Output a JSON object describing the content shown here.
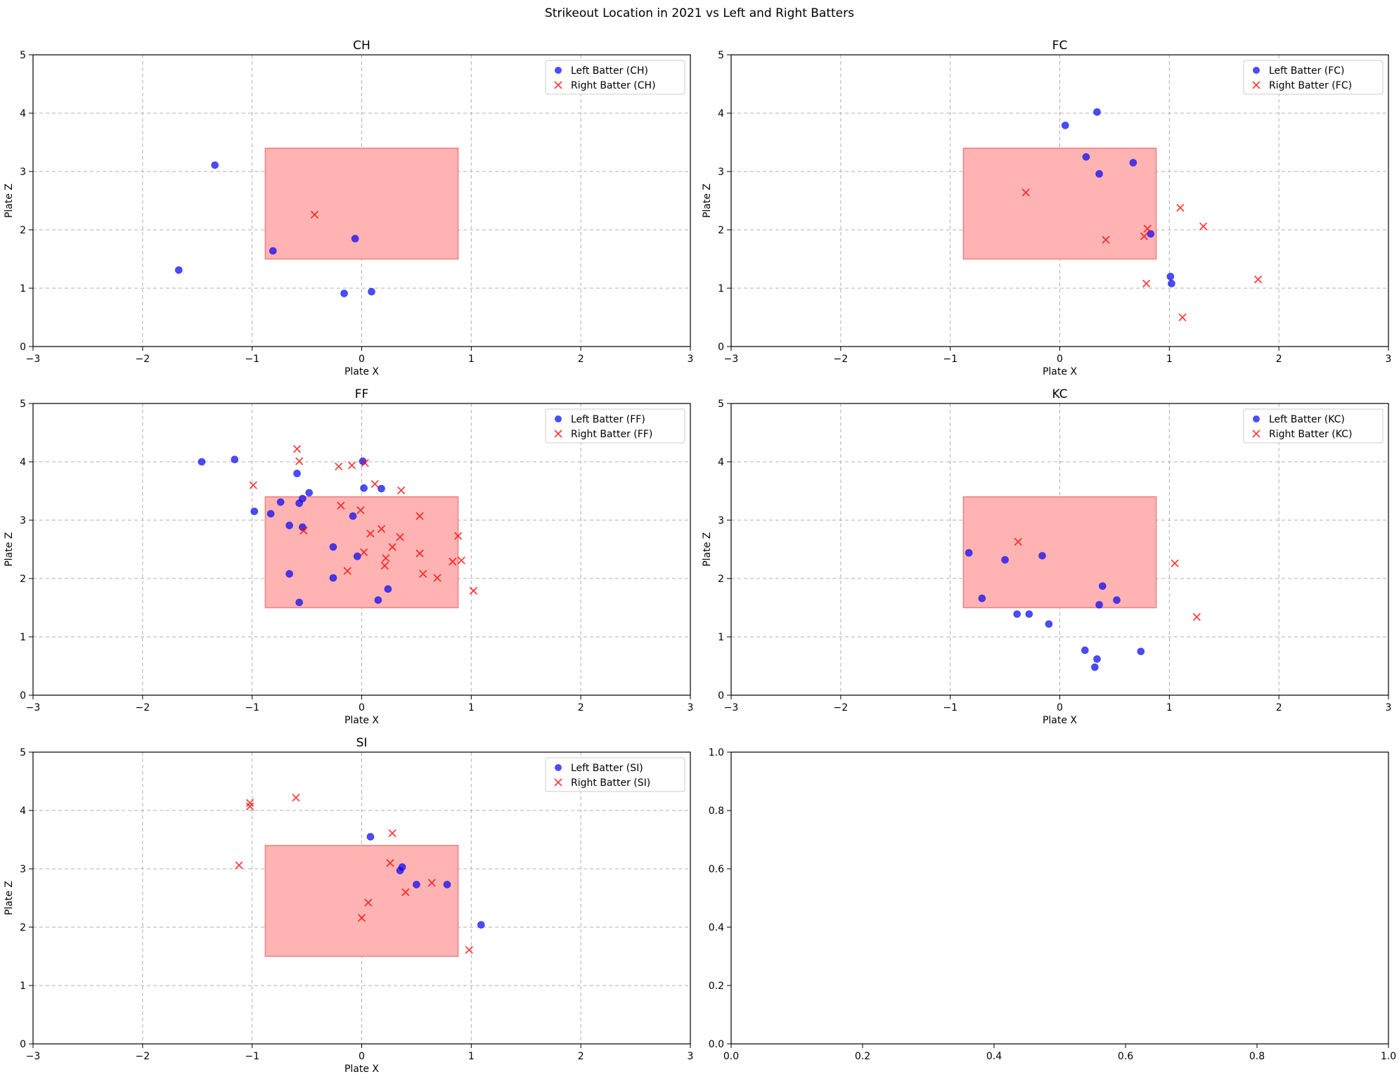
{
  "figure": {
    "suptitle": "Strikeout Location in 2021 vs Left and Right Batters"
  },
  "colors": {
    "left": "#0000ff",
    "right": "#ff0000",
    "zone_fill": "#ffb3b3",
    "zone_edge": "#f08080",
    "grid": "#b0b0b0"
  },
  "chart_data": [
    {
      "type": "scatter",
      "title": "CH",
      "xlabel": "Plate X",
      "ylabel": "Plate Z",
      "xlim": [
        -3,
        3
      ],
      "ylim": [
        0,
        5
      ],
      "xticks": [
        -3,
        -2,
        -1,
        0,
        1,
        2,
        3
      ],
      "yticks": [
        0,
        1,
        2,
        3,
        4,
        5
      ],
      "grid": true,
      "legend": "upper-right",
      "strike_zone": {
        "x": [
          -0.88,
          0.88
        ],
        "z": [
          1.5,
          3.4
        ]
      },
      "series": [
        {
          "name": "Left Batter (CH)",
          "marker": "circle",
          "points": [
            [
              -1.34,
              3.11
            ],
            [
              -1.67,
              1.31
            ],
            [
              -0.81,
              1.64
            ],
            [
              -0.06,
              1.85
            ],
            [
              -0.16,
              0.91
            ],
            [
              0.09,
              0.94
            ]
          ]
        },
        {
          "name": "Right Batter (CH)",
          "marker": "x",
          "points": [
            [
              -0.43,
              2.26
            ]
          ]
        }
      ]
    },
    {
      "type": "scatter",
      "title": "FC",
      "xlabel": "Plate X",
      "ylabel": "Plate Z",
      "xlim": [
        -3,
        3
      ],
      "ylim": [
        0,
        5
      ],
      "xticks": [
        -3,
        -2,
        -1,
        0,
        1,
        2,
        3
      ],
      "yticks": [
        0,
        1,
        2,
        3,
        4,
        5
      ],
      "grid": true,
      "legend": "upper-right",
      "strike_zone": {
        "x": [
          -0.88,
          0.88
        ],
        "z": [
          1.5,
          3.4
        ]
      },
      "series": [
        {
          "name": "Left Batter (FC)",
          "marker": "circle",
          "points": [
            [
              0.05,
              3.79
            ],
            [
              0.34,
              4.02
            ],
            [
              0.24,
              3.25
            ],
            [
              0.36,
              2.96
            ],
            [
              0.67,
              3.15
            ],
            [
              0.83,
              1.93
            ],
            [
              1.01,
              1.2
            ],
            [
              1.02,
              1.08
            ]
          ]
        },
        {
          "name": "Right Batter (FC)",
          "marker": "x",
          "points": [
            [
              -0.31,
              2.64
            ],
            [
              0.42,
              1.83
            ],
            [
              0.77,
              1.89
            ],
            [
              0.8,
              2.02
            ],
            [
              1.1,
              2.38
            ],
            [
              1.31,
              2.06
            ],
            [
              0.79,
              1.08
            ],
            [
              1.81,
              1.15
            ],
            [
              1.12,
              0.5
            ]
          ]
        }
      ]
    },
    {
      "type": "scatter",
      "title": "FF",
      "xlabel": "Plate X",
      "ylabel": "Plate Z",
      "xlim": [
        -3,
        3
      ],
      "ylim": [
        0,
        5
      ],
      "xticks": [
        -3,
        -2,
        -1,
        0,
        1,
        2,
        3
      ],
      "yticks": [
        0,
        1,
        2,
        3,
        4,
        5
      ],
      "grid": true,
      "legend": "upper-right",
      "strike_zone": {
        "x": [
          -0.88,
          0.88
        ],
        "z": [
          1.5,
          3.4
        ]
      },
      "series": [
        {
          "name": "Left Batter (FF)",
          "marker": "circle",
          "points": [
            [
              -1.46,
              4.0
            ],
            [
              -1.16,
              4.04
            ],
            [
              -0.98,
              3.15
            ],
            [
              -0.59,
              3.8
            ],
            [
              -0.48,
              3.47
            ],
            [
              0.02,
              3.55
            ],
            [
              0.01,
              4.01
            ],
            [
              0.18,
              3.54
            ],
            [
              -0.83,
              3.11
            ],
            [
              -0.74,
              3.31
            ],
            [
              -0.57,
              3.29
            ],
            [
              -0.54,
              3.37
            ],
            [
              -0.66,
              2.91
            ],
            [
              -0.54,
              2.88
            ],
            [
              -0.08,
              3.07
            ],
            [
              -0.26,
              2.54
            ],
            [
              -0.04,
              2.38
            ],
            [
              -0.66,
              2.08
            ],
            [
              -0.26,
              2.01
            ],
            [
              0.24,
              1.82
            ],
            [
              0.15,
              1.63
            ],
            [
              -0.57,
              1.59
            ]
          ]
        },
        {
          "name": "Right Batter (FF)",
          "marker": "x",
          "points": [
            [
              -0.59,
              4.22
            ],
            [
              -0.57,
              4.01
            ],
            [
              -0.21,
              3.92
            ],
            [
              -0.09,
              3.94
            ],
            [
              0.03,
              3.98
            ],
            [
              -0.99,
              3.6
            ],
            [
              0.12,
              3.62
            ],
            [
              0.36,
              3.51
            ],
            [
              -0.19,
              3.25
            ],
            [
              -0.01,
              3.17
            ],
            [
              0.53,
              3.07
            ],
            [
              -0.53,
              2.82
            ],
            [
              0.08,
              2.77
            ],
            [
              0.18,
              2.85
            ],
            [
              0.35,
              2.71
            ],
            [
              0.88,
              2.73
            ],
            [
              0.28,
              2.54
            ],
            [
              0.02,
              2.45
            ],
            [
              0.53,
              2.43
            ],
            [
              0.22,
              2.35
            ],
            [
              0.21,
              2.22
            ],
            [
              -0.13,
              2.13
            ],
            [
              0.56,
              2.08
            ],
            [
              0.69,
              2.01
            ],
            [
              0.83,
              2.29
            ],
            [
              0.91,
              2.31
            ],
            [
              1.02,
              1.79
            ]
          ]
        }
      ]
    },
    {
      "type": "scatter",
      "title": "KC",
      "xlabel": "Plate X",
      "ylabel": "Plate Z",
      "xlim": [
        -3,
        3
      ],
      "ylim": [
        0,
        5
      ],
      "xticks": [
        -3,
        -2,
        -1,
        0,
        1,
        2,
        3
      ],
      "yticks": [
        0,
        1,
        2,
        3,
        4,
        5
      ],
      "grid": true,
      "legend": "upper-right",
      "strike_zone": {
        "x": [
          -0.88,
          0.88
        ],
        "z": [
          1.5,
          3.4
        ]
      },
      "series": [
        {
          "name": "Left Batter (KC)",
          "marker": "circle",
          "points": [
            [
              -0.83,
              2.44
            ],
            [
              -0.5,
              2.32
            ],
            [
              -0.16,
              2.39
            ],
            [
              -0.71,
              1.66
            ],
            [
              0.39,
              1.87
            ],
            [
              0.52,
              1.63
            ],
            [
              0.36,
              1.55
            ],
            [
              -0.39,
              1.39
            ],
            [
              -0.28,
              1.39
            ],
            [
              -0.1,
              1.22
            ],
            [
              0.23,
              0.77
            ],
            [
              0.34,
              0.62
            ],
            [
              0.32,
              0.48
            ],
            [
              0.74,
              0.75
            ]
          ]
        },
        {
          "name": "Right Batter (KC)",
          "marker": "x",
          "points": [
            [
              -0.38,
              2.63
            ],
            [
              1.05,
              2.26
            ],
            [
              1.25,
              1.34
            ]
          ]
        }
      ]
    },
    {
      "type": "scatter",
      "title": "SI",
      "xlabel": "Plate X",
      "ylabel": "Plate Z",
      "xlim": [
        -3,
        3
      ],
      "ylim": [
        0,
        5
      ],
      "xticks": [
        -3,
        -2,
        -1,
        0,
        1,
        2,
        3
      ],
      "yticks": [
        0,
        1,
        2,
        3,
        4,
        5
      ],
      "grid": true,
      "legend": "upper-right",
      "strike_zone": {
        "x": [
          -0.88,
          0.88
        ],
        "z": [
          1.5,
          3.4
        ]
      },
      "series": [
        {
          "name": "Left Batter (SI)",
          "marker": "circle",
          "points": [
            [
              0.08,
              3.55
            ],
            [
              0.35,
              2.97
            ],
            [
              0.37,
              3.03
            ],
            [
              0.5,
              2.73
            ],
            [
              0.78,
              2.73
            ],
            [
              1.09,
              2.04
            ]
          ]
        },
        {
          "name": "Right Batter (SI)",
          "marker": "x",
          "points": [
            [
              -1.02,
              4.13
            ],
            [
              -1.02,
              4.07
            ],
            [
              -0.6,
              4.22
            ],
            [
              -1.12,
              3.06
            ],
            [
              0.28,
              3.61
            ],
            [
              0.26,
              3.1
            ],
            [
              0.06,
              2.42
            ],
            [
              0.4,
              2.6
            ],
            [
              0.64,
              2.76
            ],
            [
              0.0,
              2.16
            ],
            [
              0.98,
              1.61
            ]
          ]
        }
      ]
    },
    {
      "type": "scatter",
      "title": "",
      "xlim": [
        0,
        1
      ],
      "ylim": [
        0,
        1
      ],
      "xticks": [
        0.0,
        0.2,
        0.4,
        0.6,
        0.8,
        1.0
      ],
      "yticks": [
        0.0,
        0.2,
        0.4,
        0.6,
        0.8,
        1.0
      ],
      "xtick_labels": [
        "0.0",
        "0.2",
        "0.4",
        "0.6",
        "0.8",
        "1.0"
      ],
      "ytick_labels": [
        "0.0",
        "0.2",
        "0.4",
        "0.6",
        "0.8",
        "1.0"
      ],
      "grid": false,
      "series": []
    }
  ]
}
